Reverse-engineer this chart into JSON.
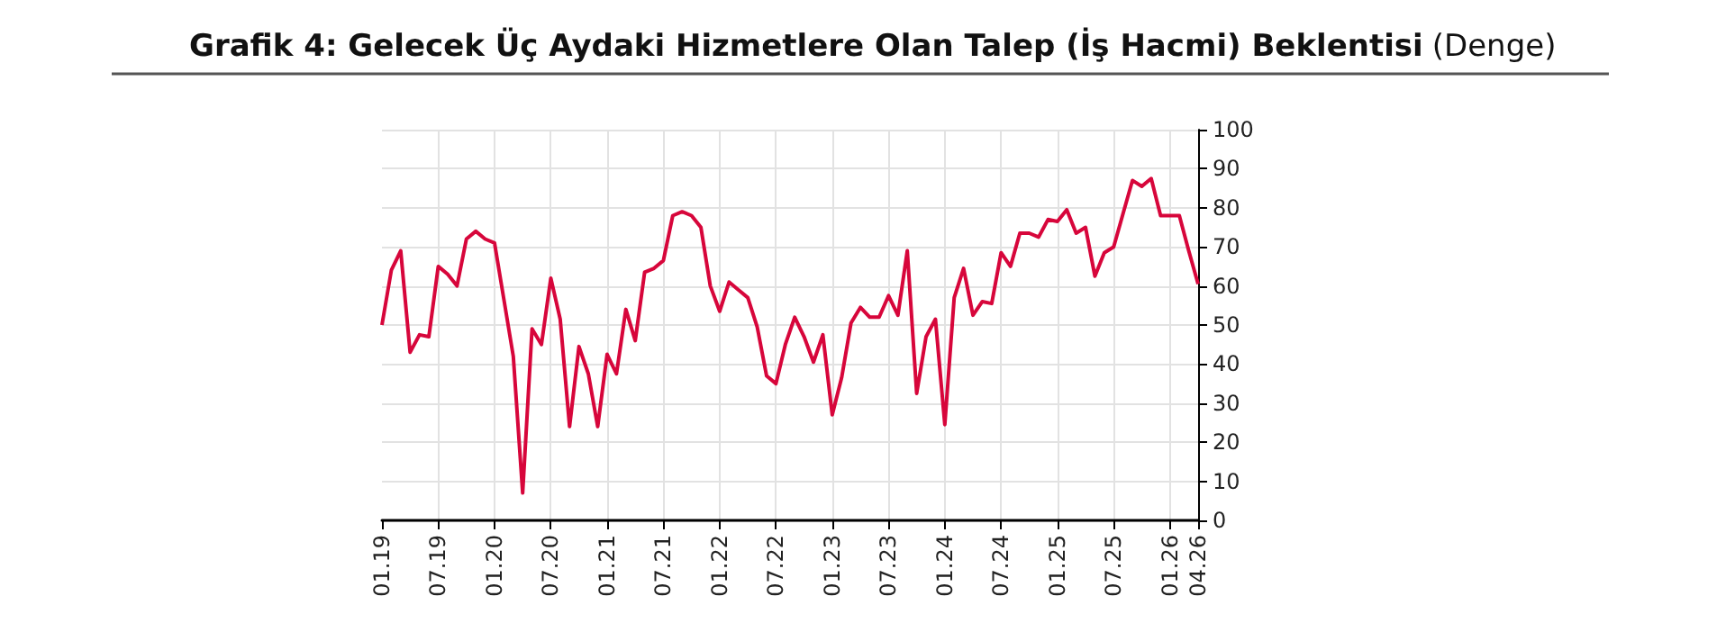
{
  "chart_data": {
    "type": "line",
    "title": "Grafik 4: Gelecek Üç Aydaki Hizmetlere Olan Talep (İş Hacmi) Beklentisi",
    "subtitle": "(Denge)",
    "categories": [
      "01.19",
      null,
      null,
      null,
      null,
      null,
      "07.19",
      null,
      null,
      null,
      null,
      null,
      "01.20",
      null,
      null,
      null,
      null,
      null,
      "07.20",
      null,
      null,
      null,
      null,
      null,
      "01.21",
      null,
      null,
      null,
      null,
      null,
      "07.21",
      null,
      null,
      null,
      null,
      null,
      "01.22",
      null,
      null,
      null,
      null,
      null,
      "07.22",
      null,
      null,
      null,
      null,
      null,
      "01.23",
      null,
      null,
      null,
      null,
      null,
      "07.23",
      null,
      null,
      null,
      null,
      null,
      "01.24",
      null,
      null,
      null,
      null,
      null,
      "07.24",
      null,
      null,
      null,
      null,
      null,
      "01.25",
      null,
      null,
      null,
      null,
      null,
      "07.25",
      null,
      null,
      null,
      null,
      null,
      "01.26",
      null,
      null,
      "04.26"
    ],
    "series": [
      {
        "color": "#d7063b",
        "values": [
          50,
          64,
          69,
          43,
          47.5,
          47,
          65,
          63,
          60,
          72,
          74,
          72,
          71,
          56.5,
          42,
          7,
          49,
          45,
          62,
          51.5,
          24,
          44.5,
          37.5,
          24,
          42.5,
          37.5,
          54,
          46,
          63.5,
          64.5,
          66.5,
          78,
          79,
          78,
          75,
          60,
          53.5,
          61,
          59,
          57,
          49.5,
          37,
          35,
          45,
          52,
          47,
          40.5,
          47.5,
          27,
          36.5,
          50.5,
          54.5,
          52,
          52,
          57.5,
          52.5,
          69,
          32.5,
          47,
          51.5,
          24.5,
          57,
          64.5,
          52.5,
          56,
          55.5,
          68.5,
          65,
          73.5,
          73.5,
          72.5,
          77,
          76.5,
          79.5,
          73.5,
          75,
          62.5,
          68.5,
          70,
          78.5,
          87,
          85.5,
          87.5,
          78,
          78,
          78,
          69,
          60.5
        ]
      }
    ],
    "ylim": [
      0,
      100
    ],
    "yticks": [
      0,
      10,
      20,
      30,
      40,
      50,
      60,
      70,
      80,
      90,
      100
    ],
    "grid": true,
    "marker": "none",
    "line_style": "solid"
  }
}
